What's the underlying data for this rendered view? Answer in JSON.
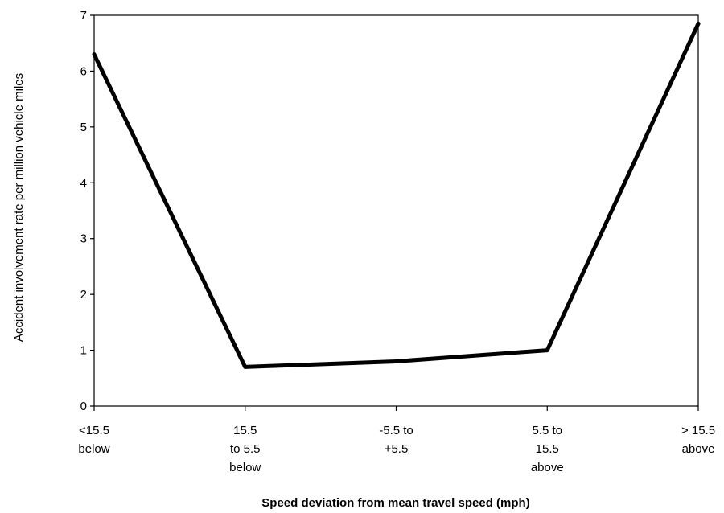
{
  "chart_data": {
    "type": "line",
    "title": "",
    "xlabel": "Speed deviation from mean travel speed (mph)",
    "ylabel": "Accident involvement rate per million vehicle miles",
    "categories": [
      [
        "<15.5",
        "below"
      ],
      [
        "15.5",
        "to 5.5",
        "below"
      ],
      [
        "-5.5 to",
        "+5.5"
      ],
      [
        "5.5 to",
        "15.5",
        "above"
      ],
      [
        "> 15.5",
        "above"
      ]
    ],
    "series": [
      {
        "values": [
          6.3,
          0.7,
          0.8,
          1.0,
          6.85
        ]
      }
    ],
    "ylim": [
      0,
      7
    ],
    "yticks": [
      "0",
      "1",
      "2",
      "3",
      "4",
      "5",
      "6",
      "7"
    ],
    "grid": false,
    "legend": "none",
    "line_color": "#000000"
  }
}
